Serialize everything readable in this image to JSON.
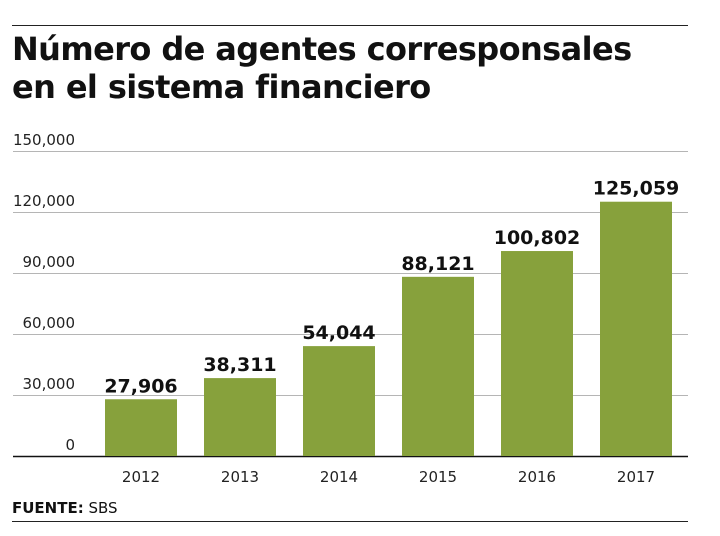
{
  "chart_data": {
    "type": "bar",
    "title_lines": [
      "Número de agentes corresponsales",
      "en el sistema financiero"
    ],
    "categories": [
      "2012",
      "2013",
      "2014",
      "2015",
      "2016",
      "2017"
    ],
    "values": [
      27906,
      38311,
      54044,
      88121,
      100802,
      125059
    ],
    "value_labels": [
      "27,906",
      "38,311",
      "54,044",
      "88,121",
      "100,802",
      "125,059"
    ],
    "y_ticks": [
      0,
      30000,
      60000,
      90000,
      120000,
      150000
    ],
    "y_tick_labels": [
      "0",
      "30,000",
      "60,000",
      "90,000",
      "120,000",
      "150,000"
    ],
    "ylim": [
      0,
      150000
    ],
    "grid": true,
    "bar_color": "#87a13c"
  },
  "footer": {
    "label": "FUENTE:",
    "source": "SBS"
  }
}
